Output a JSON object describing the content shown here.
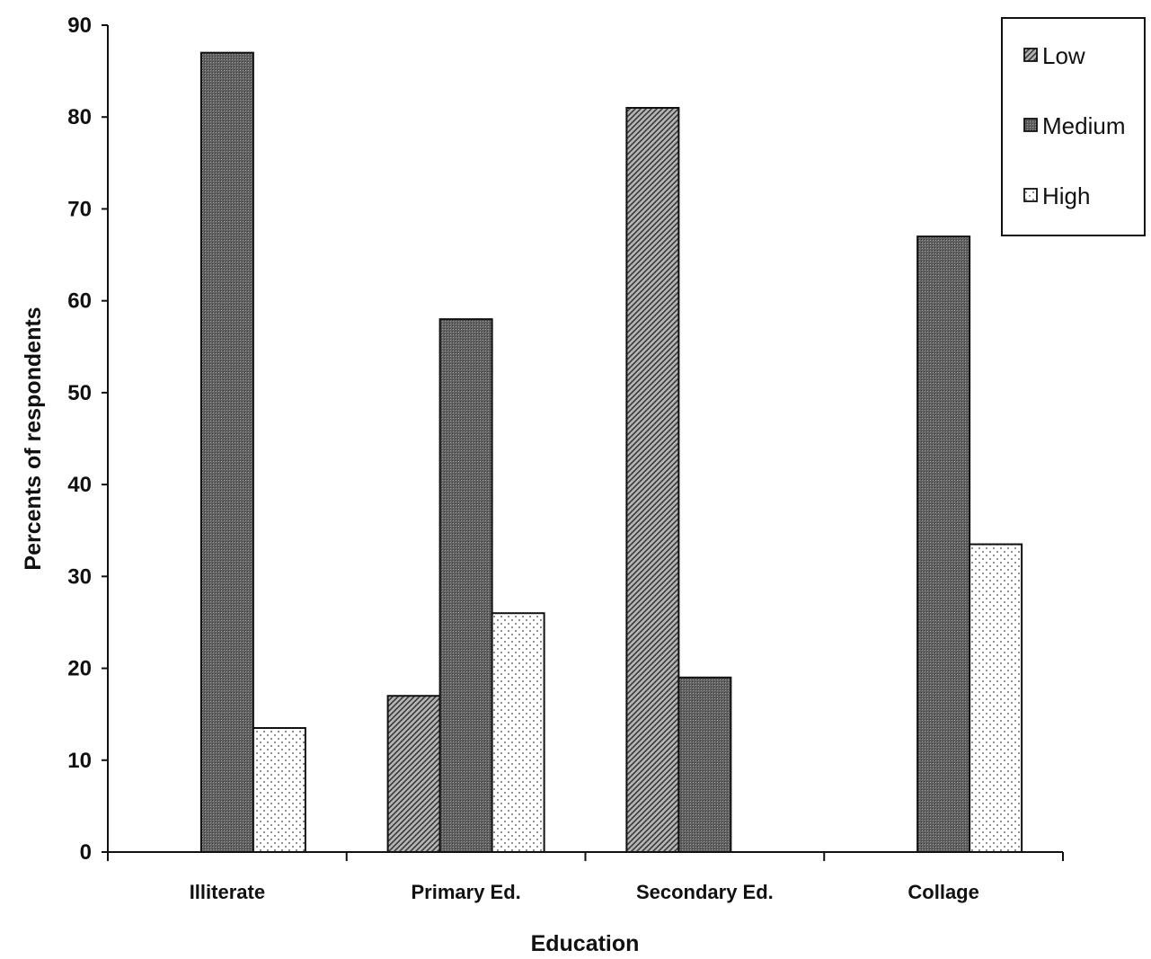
{
  "chart_data": {
    "type": "bar",
    "title": "",
    "xlabel": "Education",
    "ylabel": "Percents of respondents",
    "categories": [
      "Illiterate",
      "Primary Ed.",
      "Secondary Ed.",
      "Collage"
    ],
    "series": [
      {
        "name": "Low",
        "values": [
          0,
          17,
          81,
          0
        ],
        "pattern": "diagonal",
        "color": "#7a7a7a"
      },
      {
        "name": "Medium",
        "values": [
          87,
          58,
          19,
          67
        ],
        "pattern": "dense",
        "color": "#5a5a5a"
      },
      {
        "name": "High",
        "values": [
          13.5,
          26,
          0,
          33.5
        ],
        "pattern": "dots",
        "color": "#f2f2f2"
      }
    ],
    "ylim": [
      0,
      90
    ],
    "yticks": [
      0,
      10,
      20,
      30,
      40,
      50,
      60,
      70,
      80,
      90
    ],
    "grid": false,
    "legend_position": "top-right"
  }
}
